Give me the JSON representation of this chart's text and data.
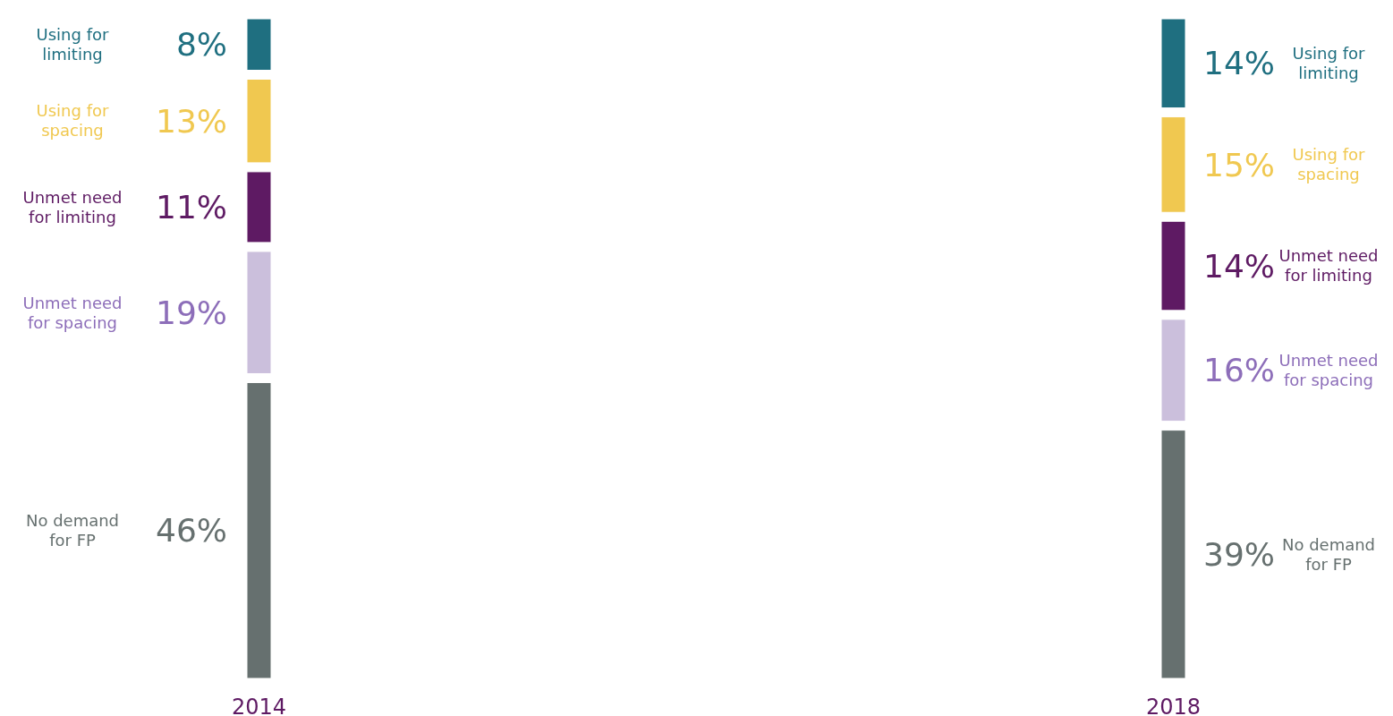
{
  "chart_data": {
    "type": "other",
    "categories": [
      "Using for limiting",
      "Using for spacing",
      "Unmet need for limiting",
      "Unmet need for spacing",
      "No demand for FP"
    ],
    "colors": [
      "#1f6f80",
      "#f0c850",
      "#5e1a63",
      "#cbbfdc",
      "#66706f"
    ],
    "series": [
      {
        "name": "2014",
        "values": [
          8,
          13,
          11,
          19,
          46
        ],
        "value_labels": [
          "8%",
          "13%",
          "11%",
          "19%",
          "46%"
        ]
      },
      {
        "name": "2018",
        "values": [
          14,
          15,
          14,
          16,
          39
        ],
        "value_labels": [
          "14%",
          "15%",
          "14%",
          "16%",
          "39%"
        ]
      }
    ]
  }
}
